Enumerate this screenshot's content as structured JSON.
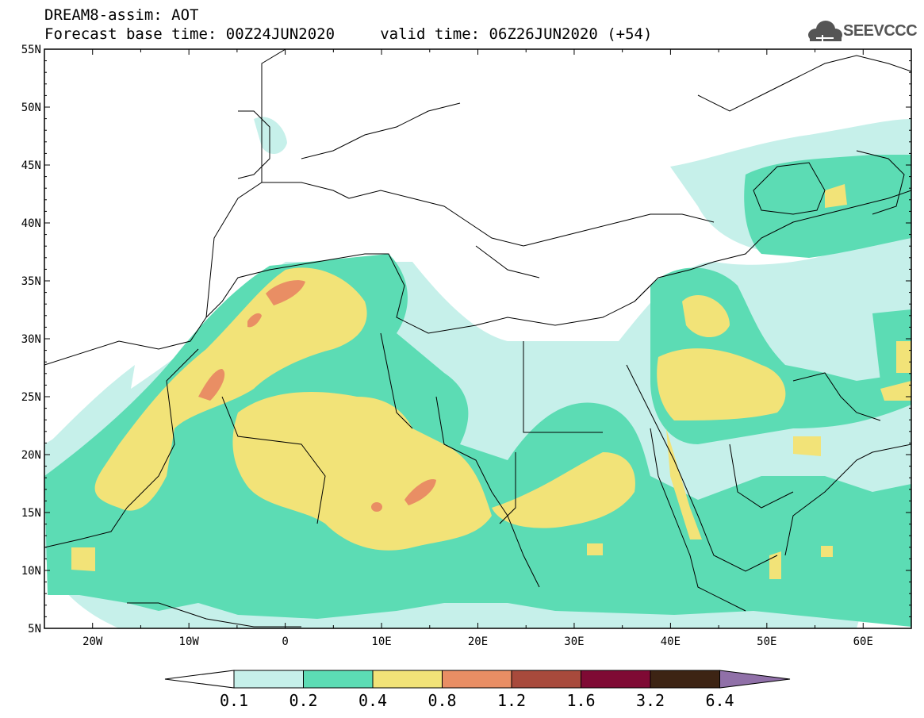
{
  "header": {
    "line1": "DREAM8-assim: AOT",
    "line2": "Forecast base time: 00Z24JUN2020     valid time: 06Z26JUN2020 (+54)"
  },
  "logo": {
    "text": "SEEVCCC",
    "icon": "cloud-icon",
    "color": "#555555"
  },
  "map": {
    "lon_range": [
      -25,
      65
    ],
    "lat_range": [
      5,
      55
    ],
    "x_ticks": [
      "20W",
      "10W",
      "0",
      "10E",
      "20E",
      "30E",
      "40E",
      "50E",
      "60E"
    ],
    "y_ticks": [
      "55N",
      "50N",
      "45N",
      "40N",
      "35N",
      "30N",
      "25N",
      "20N",
      "15N",
      "10N",
      "5N"
    ]
  },
  "colorbar": {
    "labels": [
      "0.1",
      "0.2",
      "0.4",
      "0.8",
      "1.2",
      "1.6",
      "3.2",
      "6.4"
    ],
    "colors": [
      "#ffffff",
      "#c6f0ea",
      "#5cdcb4",
      "#f2e378",
      "#e98e64",
      "#a84a3c",
      "#7f0a34",
      "#3d2414",
      "#9070a8"
    ]
  }
}
